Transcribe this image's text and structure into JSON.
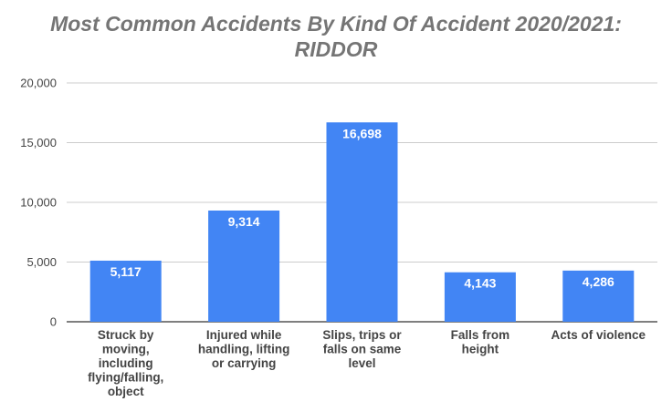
{
  "chart_data": {
    "type": "bar",
    "title_lines": [
      "Most Common Accidents By Kind Of Accident 2020/2021:",
      "RIDDOR"
    ],
    "xlabel": "",
    "ylabel": "",
    "ylim": [
      0,
      20000
    ],
    "yticks": [
      0,
      5000,
      10000,
      15000,
      20000
    ],
    "ytick_labels": [
      "0",
      "5,000",
      "10,000",
      "15,000",
      "20,000"
    ],
    "grid": true,
    "legend": "none",
    "bar_color": "#4285f4",
    "categories": [
      [
        "Struck by",
        "moving,",
        "including",
        "flying/falling,",
        "object"
      ],
      [
        "Injured while",
        "handling, lifting",
        "or carrying"
      ],
      [
        "Slips, trips or",
        "falls on same",
        "level"
      ],
      [
        "Falls from",
        "height"
      ],
      [
        "Acts of violence"
      ]
    ],
    "values": [
      5117,
      9314,
      16698,
      4143,
      4286
    ],
    "data_labels": [
      "5,117",
      "9,314",
      "16,698",
      "4,143",
      "4,286"
    ]
  }
}
